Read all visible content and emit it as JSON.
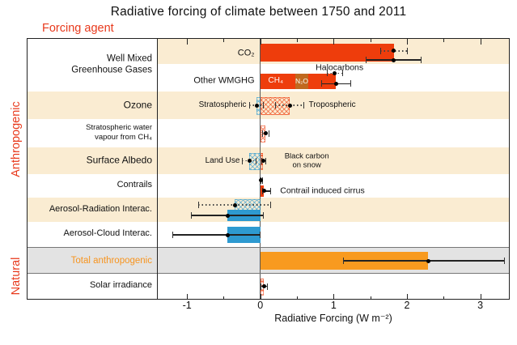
{
  "title": "Radiative forcing of climate between 1750 and 2011",
  "forcing_agent_label": "Forcing agent",
  "groups": {
    "anthropogenic": "Anthropogenic",
    "natural": "Natural"
  },
  "colors": {
    "bar_red": "#ee3d0c",
    "bar_brown": "#c0691f",
    "bar_blue": "#2e9ad0",
    "bar_orange": "#f89a1f",
    "band_cream": "#faecd2",
    "band_gray": "#e3e3e3",
    "accent_red_text": "#e8391c",
    "total_label_orange": "#f7941e",
    "hatch_red": "rgba(238,61,12,0.55)",
    "hatch_blue": "rgba(46,154,208,0.55)"
  },
  "row_labels": [
    {
      "name": "wmghg",
      "lines": [
        "Well Mixed",
        "Greenhouse Gases"
      ],
      "size": 11.5
    },
    {
      "name": "ozone",
      "lines": [
        "Ozone"
      ],
      "size": 12
    },
    {
      "name": "strat-water-vapour",
      "lines": [
        "Stratospheric water",
        "vapour from CH₄"
      ],
      "size": 9.5
    },
    {
      "name": "surface-albedo",
      "lines": [
        "Surface Albedo"
      ],
      "size": 12
    },
    {
      "name": "contrails",
      "lines": [
        "Contrails"
      ],
      "size": 11
    },
    {
      "name": "aerosol-radiation",
      "lines": [
        "Aerosol-Radiation Interac."
      ],
      "size": 11
    },
    {
      "name": "aerosol-cloud",
      "lines": [
        "Aerosol-Cloud Interac."
      ],
      "size": 11
    },
    {
      "name": "total-anthropogenic",
      "lines": [
        "Total anthropogenic"
      ],
      "size": 11.5,
      "color": "#f7941e"
    },
    {
      "name": "solar-irradiance",
      "lines": [
        "Solar irradiance"
      ],
      "size": 11
    }
  ],
  "chart_data": {
    "type": "bar",
    "orientation": "horizontal",
    "title": "Radiative forcing of climate between 1750 and 2011",
    "xlabel": "Radiative Forcing (W m⁻²)",
    "unit": "W m⁻²",
    "xlim": [
      -1.41,
      3.39
    ],
    "xticks": [
      -1,
      0,
      1,
      2,
      3
    ],
    "minor_tick_step": 0.5,
    "agents": [
      {
        "label": "CO₂",
        "value": 1.82,
        "erf_range": [
          1.44,
          2.2
        ],
        "rf": 1.82,
        "rf_range": [
          1.63,
          2.01
        ]
      },
      {
        "label": "Other WMGHG",
        "value": 1.03,
        "erf_range": [
          0.83,
          1.24
        ],
        "rf": 1.01,
        "rf_range": [
          0.91,
          1.13
        ],
        "segments": {
          "CH₄": 0.48,
          "N₂O": 0.17,
          "Halocarbons": 0.36
        }
      },
      {
        "label": "Ozone – Stratospheric",
        "value": -0.05,
        "rf_range": [
          -0.15,
          0.05
        ]
      },
      {
        "label": "Ozone – Tropospheric",
        "value": 0.4,
        "rf_range": [
          0.2,
          0.6
        ]
      },
      {
        "label": "Stratospheric water vapour from CH₄",
        "value": 0.07,
        "rf_range": [
          0.02,
          0.12
        ]
      },
      {
        "label": "Surface Albedo – Land Use",
        "value": -0.15,
        "rf_range": [
          -0.25,
          -0.05
        ]
      },
      {
        "label": "Surface Albedo – Black carbon on snow",
        "value": 0.04,
        "rf_range": [
          0.01,
          0.08
        ]
      },
      {
        "label": "Contrails",
        "value": 0.01,
        "rf_range": [
          0.0,
          0.03
        ]
      },
      {
        "label": "Contrail induced cirrus",
        "value": 0.05,
        "erf_range": [
          0.02,
          0.15
        ]
      },
      {
        "label": "Aerosol-Radiation Interac.",
        "value": -0.45,
        "erf_range": [
          -0.95,
          0.05
        ],
        "rf": -0.35,
        "rf_range": [
          -0.85,
          0.15
        ]
      },
      {
        "label": "Aerosol-Cloud Interac.",
        "value": -0.45,
        "erf_range": [
          -1.2,
          0.0
        ]
      },
      {
        "label": "Total anthropogenic",
        "value": 2.29,
        "erf_range": [
          1.13,
          3.33
        ]
      },
      {
        "label": "Solar irradiance",
        "value": 0.05,
        "erf_range": [
          0.0,
          0.1
        ]
      }
    ],
    "rows": [
      {
        "name": "co2",
        "band": "cream",
        "elements": [
          {
            "t": "bar",
            "name": "bar-co2",
            "from": 0,
            "to": 1.82,
            "color": "bar_red",
            "cy": 0.55,
            "h": 0.72
          },
          {
            "t": "err",
            "name": "errorbar-co2-rf",
            "style": "dotted",
            "lo": 1.63,
            "hi": 2.01,
            "dot": 1.82,
            "cy": 0.48
          },
          {
            "t": "err",
            "name": "errorbar-co2-erf",
            "style": "solid",
            "lo": 1.44,
            "hi": 2.2,
            "dot": 1.82,
            "cy": 0.84
          },
          {
            "t": "text",
            "name": "label-co2",
            "text": "CO₂",
            "at": -0.08,
            "anchor": "right",
            "size": 11,
            "cy": 0.58
          }
        ]
      },
      {
        "name": "other-wmghg",
        "band": "white",
        "elements": [
          {
            "t": "text",
            "name": "label-halocarbons",
            "text": "Halocarbons",
            "at": 1.08,
            "anchor": "center",
            "size": 10.5,
            "cy": 0.15
          },
          {
            "t": "bar",
            "name": "bar-other-wmghg",
            "from": 0,
            "to": 1.03,
            "color": "bar_red",
            "cy": 0.63,
            "h": 0.58
          },
          {
            "t": "bar",
            "name": "bar-n2o-segment",
            "from": 0.48,
            "to": 0.65,
            "color": "bar_brown",
            "cy": 0.63,
            "h": 0.58
          },
          {
            "t": "err",
            "name": "errorbar-other-wmghg-rf",
            "style": "dotted",
            "lo": 0.91,
            "hi": 1.13,
            "dot": 1.01,
            "cy": 0.33
          },
          {
            "t": "err",
            "name": "errorbar-other-wmghg-erf",
            "style": "solid",
            "lo": 0.83,
            "hi": 1.24,
            "dot": 1.03,
            "cy": 0.72
          },
          {
            "t": "text",
            "name": "label-ch4",
            "text": "CH₄",
            "at": 0.21,
            "anchor": "center",
            "size": 10,
            "color": "#ffffff",
            "cy": 0.63
          },
          {
            "t": "text",
            "name": "label-n2o",
            "text": "N₂O",
            "at": 0.565,
            "anchor": "center",
            "size": 8.5,
            "color": "#ffffff",
            "cy": 0.63
          },
          {
            "t": "text",
            "name": "label-other-wmghg",
            "text": "Other WMGHG",
            "at": -0.08,
            "anchor": "right",
            "size": 11,
            "cy": 0.63
          }
        ]
      },
      {
        "name": "ozone",
        "band": "cream",
        "elements": [
          {
            "t": "hatch",
            "name": "hatchbar-ozone-stratospheric",
            "from": -0.05,
            "to": 0,
            "color": "blue",
            "cy": 0.5,
            "h": 0.6
          },
          {
            "t": "hatch",
            "name": "hatchbar-ozone-tropospheric",
            "from": 0,
            "to": 0.4,
            "color": "red",
            "cy": 0.5,
            "h": 0.6
          },
          {
            "t": "err",
            "name": "errorbar-ozone-stratospheric",
            "style": "dotted",
            "lo": -0.15,
            "hi": 0.05,
            "dot": -0.05,
            "cy": 0.5
          },
          {
            "t": "err",
            "name": "errorbar-ozone-tropospheric",
            "style": "dotted",
            "lo": 0.2,
            "hi": 0.6,
            "dot": 0.4,
            "cy": 0.5
          },
          {
            "t": "text",
            "name": "label-stratospheric",
            "text": "Stratospheric",
            "at": -0.19,
            "anchor": "right",
            "size": 10,
            "cy": 0.5
          },
          {
            "t": "text",
            "name": "label-tropospheric",
            "text": "Tropospheric",
            "at": 0.66,
            "anchor": "left",
            "size": 10,
            "cy": 0.5
          }
        ]
      },
      {
        "name": "stratospheric-water-vapour",
        "band": "white",
        "elements": [
          {
            "t": "hatch",
            "name": "hatchbar-strat-water-vapour",
            "from": 0,
            "to": 0.07,
            "color": "red",
            "cy": 0.5,
            "h": 0.55
          },
          {
            "t": "err",
            "name": "errorbar-strat-water-vapour",
            "style": "dotted",
            "lo": 0.02,
            "hi": 0.12,
            "dot": 0.07,
            "cy": 0.5
          }
        ]
      },
      {
        "name": "surface-albedo",
        "band": "cream",
        "elements": [
          {
            "t": "hatch",
            "name": "hatchbar-land-use",
            "from": -0.15,
            "to": 0,
            "color": "blue",
            "cy": 0.5,
            "h": 0.6
          },
          {
            "t": "hatch",
            "name": "hatchbar-black-carbon",
            "from": 0,
            "to": 0.04,
            "color": "red",
            "cy": 0.5,
            "h": 0.6
          },
          {
            "t": "err",
            "name": "errorbar-land-use",
            "style": "dotted",
            "lo": -0.25,
            "hi": -0.05,
            "dot": -0.15,
            "cy": 0.5
          },
          {
            "t": "err",
            "name": "errorbar-black-carbon",
            "style": "dotted",
            "lo": 0.01,
            "hi": 0.08,
            "dot": 0.04,
            "cy": 0.5
          },
          {
            "t": "text",
            "name": "label-land-use",
            "text": "Land Use",
            "at": -0.28,
            "anchor": "right",
            "size": 10,
            "cy": 0.5
          },
          {
            "t": "text",
            "name": "label-black-carbon",
            "lines": [
              "Black carbon",
              "on snow"
            ],
            "at": 0.33,
            "anchor": "left",
            "size": 9.5,
            "cy": 0.5
          }
        ]
      },
      {
        "name": "contrails",
        "band": "white",
        "elements": [
          {
            "t": "err",
            "name": "errorbar-contrails",
            "style": "dotted",
            "lo": 0.0,
            "hi": 0.03,
            "dot": 0.01,
            "cy": 0.26
          },
          {
            "t": "bar",
            "name": "bar-contrail-cirrus",
            "from": 0,
            "to": 0.05,
            "color": "bar_red",
            "cy": 0.72,
            "h": 0.48
          },
          {
            "t": "err",
            "name": "errorbar-contrail-cirrus",
            "style": "solid",
            "lo": 0.02,
            "hi": 0.15,
            "dot": 0.05,
            "cy": 0.72
          },
          {
            "t": "text",
            "name": "label-contrail-cirrus",
            "text": "Contrail induced cirrus",
            "at": 0.27,
            "anchor": "left",
            "size": 10.5,
            "cy": 0.72
          }
        ]
      },
      {
        "name": "aerosol-radiation",
        "band": "cream",
        "elements": [
          {
            "t": "hatch",
            "name": "hatchbar-aerosol-radiation",
            "from": -0.35,
            "to": 0,
            "color": "blue",
            "cy": 0.3,
            "h": 0.46
          },
          {
            "t": "err",
            "name": "errorbar-aerosol-radiation-rf",
            "style": "dotted",
            "lo": -0.85,
            "hi": 0.15,
            "dot": -0.35,
            "cy": 0.3
          },
          {
            "t": "bar",
            "name": "bar-aerosol-radiation",
            "from": -0.45,
            "to": 0,
            "color": "bar_blue",
            "cy": 0.74,
            "h": 0.46
          },
          {
            "t": "err",
            "name": "errorbar-aerosol-radiation-erf",
            "style": "solid",
            "lo": -0.95,
            "hi": 0.05,
            "dot": -0.45,
            "cy": 0.74
          }
        ]
      },
      {
        "name": "aerosol-cloud",
        "band": "white",
        "elements": [
          {
            "t": "bar",
            "name": "bar-aerosol-cloud",
            "from": -0.45,
            "to": 0,
            "color": "bar_blue",
            "cy": 0.5,
            "h": 0.6
          },
          {
            "t": "err",
            "name": "errorbar-aerosol-cloud",
            "style": "solid",
            "lo": -1.2,
            "hi": 0.0,
            "dot": -0.45,
            "cy": 0.5
          }
        ]
      },
      {
        "name": "total-anthropogenic",
        "band": "gray",
        "elements": [
          {
            "t": "bar",
            "name": "bar-total-anthropogenic",
            "from": 0,
            "to": 2.29,
            "color": "bar_orange",
            "cy": 0.5,
            "h": 0.66
          },
          {
            "t": "err",
            "name": "errorbar-total-anthropogenic",
            "style": "solid",
            "lo": 1.13,
            "hi": 3.33,
            "dot": 2.29,
            "cy": 0.5
          }
        ]
      },
      {
        "name": "solar-irradiance",
        "band": "white",
        "elements": [
          {
            "t": "hatch",
            "name": "hatchbar-solar",
            "from": 0,
            "to": 0.05,
            "color": "red",
            "cy": 0.5,
            "h": 0.6
          },
          {
            "t": "err",
            "name": "errorbar-solar",
            "style": "solid",
            "lo": 0.0,
            "hi": 0.1,
            "dot": 0.05,
            "cy": 0.5
          }
        ]
      }
    ]
  }
}
